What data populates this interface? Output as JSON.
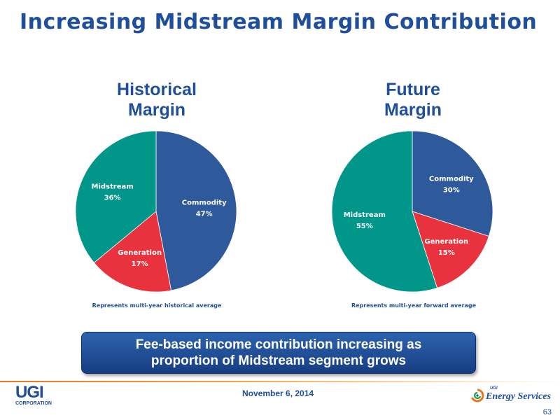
{
  "slide": {
    "title": "Increasing Midstream Margin Contribution"
  },
  "chart_data": [
    {
      "type": "pie",
      "title": "Historical Margin",
      "title_lines": [
        "Historical",
        "Margin"
      ],
      "note": "Represents multi-year historical average",
      "slices": [
        {
          "name": "Commodity",
          "value": 47,
          "label": "47%",
          "color": "#2e5a9b"
        },
        {
          "name": "Generation",
          "value": 17,
          "label": "17%",
          "color": "#e8333f"
        },
        {
          "name": "Midstream",
          "value": 36,
          "label": "36%",
          "color": "#00968a"
        }
      ]
    },
    {
      "type": "pie",
      "title": "Future Margin",
      "title_lines": [
        "Future",
        "Margin"
      ],
      "note": "Represents multi-year forward average",
      "slices": [
        {
          "name": "Commodity",
          "value": 30,
          "label": "30%",
          "color": "#2e5a9b"
        },
        {
          "name": "Generation",
          "value": 15,
          "label": "15%",
          "color": "#e8333f"
        },
        {
          "name": "Midstream",
          "value": 55,
          "label": "55%",
          "color": "#00968a"
        }
      ]
    }
  ],
  "banner": {
    "line1": "Fee-based income contribution increasing as",
    "line2": "proportion of Midstream segment grows"
  },
  "footer": {
    "date": "November 6, 2014",
    "page_number": "63",
    "ugi_logo_text": "UGI",
    "ugi_logo_sub": "CORPORATION",
    "es_logo_small": "UGI",
    "es_logo_text": "Energy Services"
  }
}
